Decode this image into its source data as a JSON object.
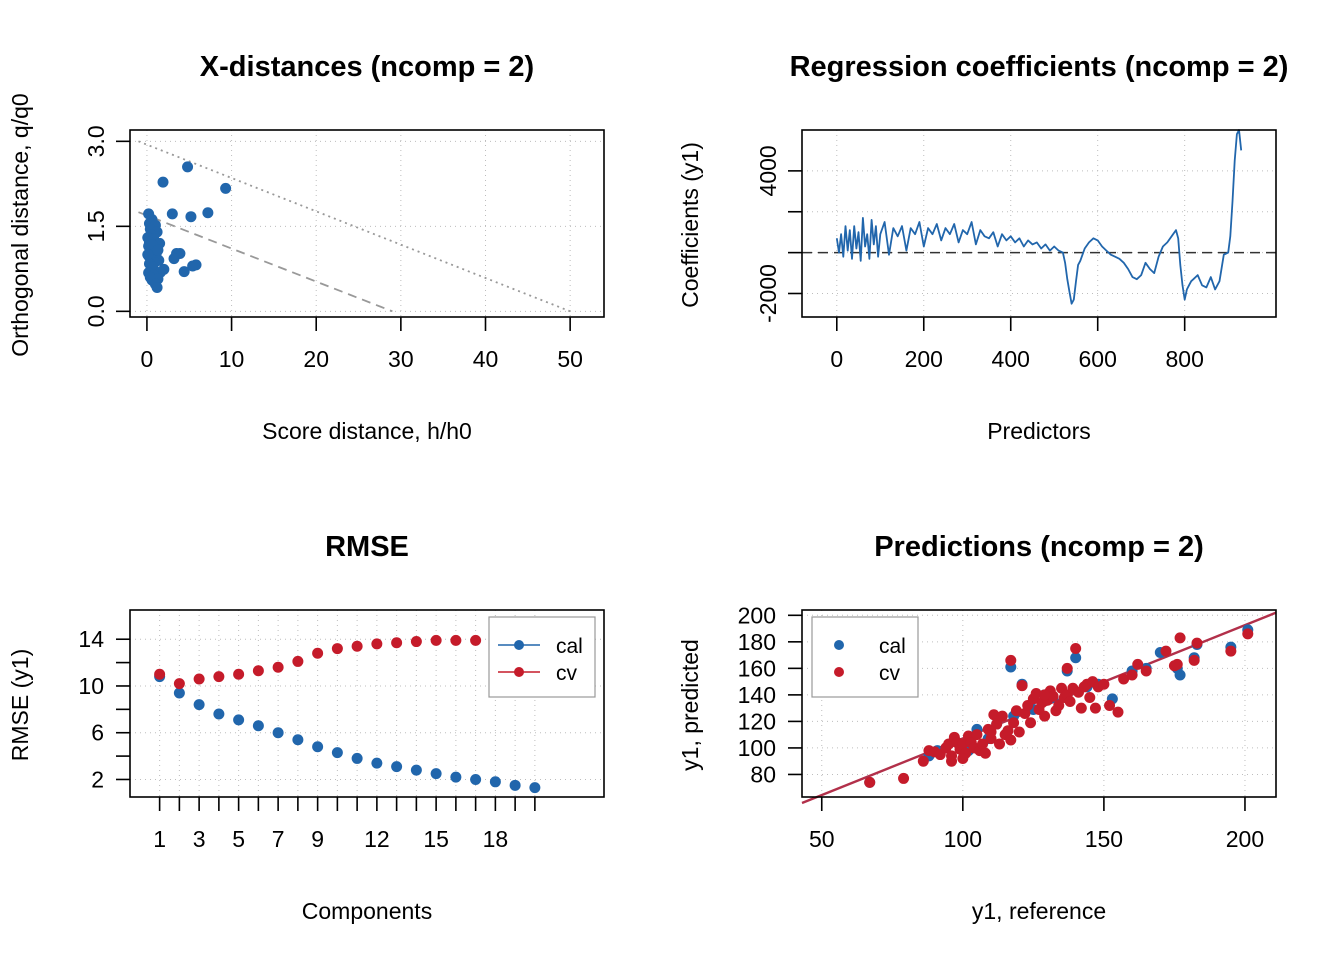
{
  "colors": {
    "cal": "#2166AC",
    "cv": "#C51B2A",
    "frame": "#000000",
    "grid": "#BDBDBD",
    "limit": "#999999",
    "target": "#B2304A"
  },
  "chart_data": [
    {
      "id": "xdist",
      "type": "scatter",
      "title": "X-distances (ncomp = 2)",
      "xlabel": "Score distance, h/h0",
      "ylabel": "Orthogonal distance, q/q0",
      "xlim": [
        -2,
        54
      ],
      "ylim": [
        -0.1,
        3.2
      ],
      "xticks": [
        0,
        10,
        20,
        30,
        40,
        50
      ],
      "yticks": [
        0.0,
        1.5,
        3.0
      ],
      "ytick_labels": [
        "0.0",
        "1.5",
        "3.0"
      ],
      "grid": true,
      "lines": [
        {
          "style": "dotted",
          "x": [
            -1,
            50
          ],
          "y": [
            3.0,
            0.0
          ]
        },
        {
          "style": "dashed",
          "x": [
            -1,
            29
          ],
          "y": [
            1.75,
            0.0
          ]
        }
      ],
      "series": [
        {
          "points": [
            [
              4.8,
              2.55
            ],
            [
              9.3,
              2.17
            ],
            [
              1.9,
              2.28
            ],
            [
              3.0,
              1.72
            ],
            [
              7.2,
              1.74
            ],
            [
              5.2,
              1.67
            ],
            [
              0.2,
              1.72
            ],
            [
              0.6,
              1.62
            ],
            [
              0.3,
              1.55
            ],
            [
              1.0,
              1.52
            ],
            [
              0.4,
              1.45
            ],
            [
              1.2,
              1.4
            ],
            [
              0.5,
              1.35
            ],
            [
              0.1,
              1.3
            ],
            [
              0.8,
              1.28
            ],
            [
              0.3,
              1.22
            ],
            [
              1.5,
              1.2
            ],
            [
              0.2,
              1.15
            ],
            [
              0.7,
              1.1
            ],
            [
              0.4,
              1.05
            ],
            [
              1.1,
              1.02
            ],
            [
              0.2,
              0.98
            ],
            [
              3.5,
              1.02
            ],
            [
              3.9,
              1.02
            ],
            [
              3.2,
              0.93
            ],
            [
              0.5,
              0.92
            ],
            [
              1.4,
              0.9
            ],
            [
              0.9,
              0.86
            ],
            [
              0.3,
              0.84
            ],
            [
              5.8,
              0.82
            ],
            [
              5.4,
              0.8
            ],
            [
              0.7,
              0.78
            ],
            [
              2.0,
              0.74
            ],
            [
              4.4,
              0.7
            ],
            [
              1.6,
              0.69
            ],
            [
              0.2,
              0.68
            ],
            [
              0.8,
              0.64
            ],
            [
              0.4,
              0.6
            ],
            [
              1.3,
              0.57
            ],
            [
              0.6,
              0.55
            ],
            [
              1.0,
              0.48
            ],
            [
              1.2,
              0.42
            ],
            [
              0.1,
              1.0
            ],
            [
              0.6,
              1.18
            ],
            [
              1.3,
              1.08
            ]
          ]
        }
      ]
    },
    {
      "id": "regcoeffs",
      "type": "line",
      "title": "Regression coefficients (ncomp = 2)",
      "xlabel": "Predictors",
      "ylabel": "Coefficients (y1)",
      "xlim": [
        -80,
        1010
      ],
      "ylim": [
        -3150,
        6000
      ],
      "xticks": [
        0,
        200,
        400,
        600,
        800
      ],
      "yticks": [
        -2000,
        4000
      ],
      "minor_yticks": [
        0,
        2000
      ],
      "grid": true,
      "grid_y": [
        -2000,
        0,
        2000,
        4000
      ],
      "hline_dashed": 0,
      "series": [
        {
          "name": "",
          "x": [
            0,
            5,
            10,
            15,
            20,
            25,
            30,
            35,
            40,
            45,
            50,
            55,
            60,
            65,
            70,
            75,
            80,
            85,
            90,
            95,
            100,
            110,
            120,
            130,
            140,
            150,
            160,
            170,
            180,
            190,
            200,
            210,
            220,
            230,
            240,
            250,
            260,
            270,
            280,
            290,
            300,
            310,
            320,
            330,
            340,
            350,
            360,
            370,
            380,
            390,
            400,
            410,
            420,
            430,
            440,
            450,
            460,
            470,
            480,
            490,
            500,
            510,
            520,
            525,
            530,
            535,
            540,
            545,
            550,
            555,
            560,
            570,
            580,
            590,
            600,
            610,
            620,
            630,
            640,
            650,
            660,
            670,
            680,
            690,
            700,
            710,
            720,
            730,
            740,
            750,
            760,
            770,
            780,
            785,
            790,
            795,
            800,
            805,
            810,
            815,
            820,
            830,
            840,
            850,
            860,
            870,
            880,
            890,
            900,
            905,
            910,
            915,
            920,
            925,
            930
          ],
          "y": [
            700,
            0,
            900,
            -200,
            1300,
            100,
            1100,
            -300,
            1300,
            200,
            1000,
            -400,
            1700,
            300,
            900,
            -300,
            1600,
            400,
            1300,
            -200,
            900,
            1500,
            -100,
            1200,
            800,
            1300,
            100,
            1200,
            900,
            1500,
            300,
            1200,
            900,
            1400,
            600,
            1200,
            900,
            1400,
            500,
            1100,
            900,
            1500,
            400,
            1100,
            800,
            700,
            1000,
            300,
            900,
            600,
            800,
            500,
            700,
            300,
            600,
            400,
            500,
            200,
            400,
            100,
            300,
            100,
            0,
            -500,
            -1300,
            -1900,
            -2500,
            -2300,
            -1400,
            -600,
            -400,
            200,
            500,
            700,
            600,
            300,
            100,
            -100,
            -200,
            -300,
            -500,
            -800,
            -1200,
            -1300,
            -1100,
            -500,
            -800,
            -1000,
            -200,
            300,
            500,
            800,
            1100,
            700,
            -600,
            -1600,
            -2300,
            -1800,
            -1600,
            -1400,
            -1300,
            -1100,
            -1600,
            -1700,
            -1200,
            -1800,
            -1400,
            -100,
            0,
            800,
            2500,
            4500,
            5800,
            6000,
            5000
          ]
        }
      ]
    },
    {
      "id": "rmse",
      "type": "line",
      "title": "RMSE",
      "xlabel": "Components",
      "ylabel": "RMSE (y1)",
      "xlim": [
        -0.5,
        23.5
      ],
      "ylim": [
        0.5,
        16.5
      ],
      "xticks": [
        1,
        2,
        3,
        4,
        5,
        6,
        7,
        8,
        9,
        10,
        11,
        12,
        13,
        14,
        15,
        16,
        17,
        18,
        19,
        20
      ],
      "xtick_labels": [
        "1",
        "",
        "3",
        "",
        "5",
        "",
        "7",
        "",
        "9",
        "",
        "",
        "12",
        "",
        "",
        "15",
        "",
        "",
        "18",
        "",
        ""
      ],
      "yticks": [
        2,
        6,
        10,
        14
      ],
      "minor_yticks": [
        4,
        8,
        12
      ],
      "grid": true,
      "legend": {
        "position": "top-right",
        "entries": [
          "cal",
          "cv"
        ]
      },
      "series": [
        {
          "name": "cal",
          "values": [
            10.8,
            9.4,
            8.4,
            7.6,
            7.1,
            6.6,
            6.0,
            5.4,
            4.8,
            4.3,
            3.8,
            3.4,
            3.1,
            2.8,
            2.5,
            2.2,
            2.0,
            1.8,
            1.5,
            1.3
          ]
        },
        {
          "name": "cv",
          "values": [
            11.0,
            10.2,
            10.6,
            10.8,
            11.0,
            11.3,
            11.6,
            12.1,
            12.8,
            13.2,
            13.4,
            13.6,
            13.7,
            13.8,
            13.9,
            13.9,
            13.9
          ]
        }
      ]
    },
    {
      "id": "predictions",
      "type": "scatter",
      "title": "Predictions (ncomp = 2)",
      "xlabel": "y1, reference",
      "ylabel": "y1, predicted",
      "xlim": [
        43,
        211
      ],
      "ylim": [
        63,
        204
      ],
      "xticks": [
        50,
        100,
        150,
        200
      ],
      "yticks": [
        80,
        100,
        120,
        140,
        160,
        180,
        200
      ],
      "grid": true,
      "legend": {
        "position": "top-left",
        "entries": [
          "cal",
          "cv"
        ]
      },
      "target_line": {
        "x": [
          43,
          211
        ],
        "y": [
          54,
          202
        ]
      },
      "series": [
        {
          "name": "cal",
          "points": [
            [
              67,
              74
            ],
            [
              117,
              161
            ],
            [
              121,
              148
            ],
            [
              140,
              168
            ],
            [
              137,
              158
            ],
            [
              177,
              155
            ],
            [
              195,
              176
            ],
            [
              201,
              189
            ],
            [
              183,
              178
            ],
            [
              176,
              160
            ],
            [
              182,
              168
            ],
            [
              165,
              160
            ],
            [
              153,
              137
            ],
            [
              148,
              148
            ],
            [
              132,
              138
            ],
            [
              125,
              129
            ],
            [
              112,
              118
            ],
            [
              105,
              114
            ],
            [
              98,
              104
            ],
            [
              91,
              98
            ],
            [
              88,
              94
            ],
            [
              102,
              98
            ],
            [
              109,
              107
            ],
            [
              118,
              124
            ],
            [
              129,
              140
            ],
            [
              144,
              146
            ],
            [
              160,
              158
            ],
            [
              170,
              172
            ]
          ]
        },
        {
          "name": "cv",
          "points": [
            [
              67,
              74
            ],
            [
              79,
              77
            ],
            [
              86,
              90
            ],
            [
              88,
              98
            ],
            [
              90,
              97
            ],
            [
              92,
              95
            ],
            [
              94,
              100
            ],
            [
              95,
              103
            ],
            [
              96,
              90
            ],
            [
              97,
              108
            ],
            [
              98,
              104
            ],
            [
              99,
              99
            ],
            [
              100,
              103
            ],
            [
              101,
              96
            ],
            [
              102,
              109
            ],
            [
              103,
              104
            ],
            [
              104,
              100
            ],
            [
              105,
              110
            ],
            [
              106,
              98
            ],
            [
              107,
              103
            ],
            [
              108,
              96
            ],
            [
              109,
              114
            ],
            [
              110,
              107
            ],
            [
              111,
              125
            ],
            [
              112,
              118
            ],
            [
              113,
              103
            ],
            [
              114,
              124
            ],
            [
              115,
              110
            ],
            [
              116,
              113
            ],
            [
              117,
              106
            ],
            [
              118,
              119
            ],
            [
              119,
              128
            ],
            [
              120,
              112
            ],
            [
              121,
              147
            ],
            [
              122,
              126
            ],
            [
              123,
              132
            ],
            [
              124,
              119
            ],
            [
              125,
              137
            ],
            [
              126,
              141
            ],
            [
              127,
              129
            ],
            [
              128,
              134
            ],
            [
              129,
              124
            ],
            [
              130,
              136
            ],
            [
              131,
              143
            ],
            [
              132,
              139
            ],
            [
              133,
              128
            ],
            [
              134,
              132
            ],
            [
              135,
              145
            ],
            [
              136,
              138
            ],
            [
              137,
              140
            ],
            [
              138,
              135
            ],
            [
              139,
              145
            ],
            [
              140,
              175
            ],
            [
              141,
              142
            ],
            [
              142,
              130
            ],
            [
              143,
              146
            ],
            [
              144,
              148
            ],
            [
              145,
              138
            ],
            [
              146,
              150
            ],
            [
              147,
              130
            ],
            [
              148,
              146
            ],
            [
              150,
              148
            ],
            [
              152,
              132
            ],
            [
              155,
              127
            ],
            [
              157,
              152
            ],
            [
              160,
              155
            ],
            [
              162,
              163
            ],
            [
              165,
              158
            ],
            [
              172,
              173
            ],
            [
              175,
              162
            ],
            [
              176,
              163
            ],
            [
              177,
              183
            ],
            [
              182,
              166
            ],
            [
              183,
              179
            ],
            [
              195,
              173
            ],
            [
              201,
              186
            ],
            [
              117,
              166
            ],
            [
              121,
              147
            ],
            [
              137,
              160
            ],
            [
              129,
              140
            ],
            [
              110,
              112
            ],
            [
              96,
              94
            ],
            [
              100,
              92
            ]
          ]
        }
      ]
    }
  ]
}
